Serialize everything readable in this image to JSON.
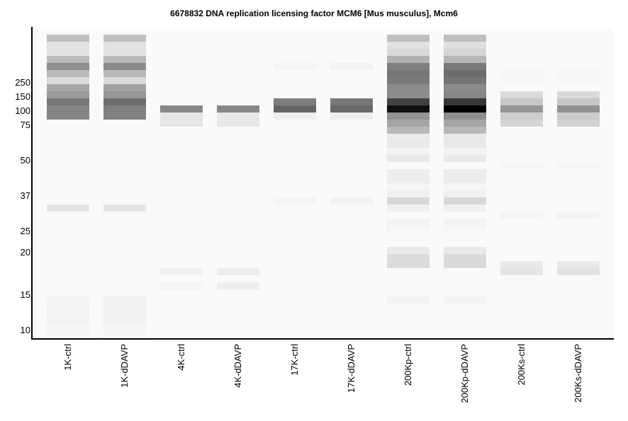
{
  "chart_data": {
    "type": "heatmap",
    "subtype": "virtual-gel",
    "title": "6678832 DNA replication licensing factor MCM6 [Mus musculus], Mcm6",
    "ylabel": "",
    "xlabel": "",
    "y_ticks": [
      "250",
      "150",
      "100",
      "75",
      "50",
      "37",
      "25",
      "20",
      "15",
      "10"
    ],
    "y_tick_bins": [
      6.7,
      8.7,
      10.7,
      12.7,
      17.7,
      22.7,
      27.7,
      30.7,
      36.7,
      41.7
    ],
    "bins": 43,
    "background_grey": 250,
    "lanes": [
      {
        "name": "1K-ctrl",
        "bands": [
          [
            0,
            191
          ],
          [
            1,
            227
          ],
          [
            2,
            227
          ],
          [
            3,
            188
          ],
          [
            4,
            142
          ],
          [
            5,
            187
          ],
          [
            6,
            220
          ],
          [
            7,
            166
          ],
          [
            8,
            154
          ],
          [
            9,
            119
          ],
          [
            10,
            133
          ],
          [
            11,
            133
          ],
          [
            24,
            230
          ],
          [
            37,
            243
          ],
          [
            38,
            242
          ],
          [
            39,
            242
          ],
          [
            40,
            242
          ],
          [
            41,
            245
          ],
          [
            42,
            246
          ]
        ]
      },
      {
        "name": "1K-dDAVP",
        "bands": [
          [
            0,
            191
          ],
          [
            1,
            226
          ],
          [
            2,
            226
          ],
          [
            3,
            186
          ],
          [
            4,
            138
          ],
          [
            5,
            184
          ],
          [
            6,
            218
          ],
          [
            7,
            162
          ],
          [
            8,
            150
          ],
          [
            9,
            110
          ],
          [
            10,
            128
          ],
          [
            11,
            128
          ],
          [
            24,
            230
          ],
          [
            37,
            241
          ],
          [
            38,
            241
          ],
          [
            39,
            241
          ],
          [
            40,
            241
          ],
          [
            41,
            245
          ],
          [
            42,
            245
          ]
        ]
      },
      {
        "name": "4K-ctrl",
        "bands": [
          [
            10,
            135
          ],
          [
            11,
            228
          ],
          [
            12,
            230
          ],
          [
            33,
            240
          ],
          [
            35,
            245
          ]
        ]
      },
      {
        "name": "4K-dDAVP",
        "bands": [
          [
            10,
            135
          ],
          [
            11,
            232
          ],
          [
            12,
            232
          ],
          [
            33,
            236
          ],
          [
            35,
            238
          ]
        ]
      },
      {
        "name": "17K-ctrl",
        "bands": [
          [
            4,
            245
          ],
          [
            9,
            125
          ],
          [
            10,
            100
          ],
          [
            11,
            238
          ],
          [
            23,
            245
          ]
        ]
      },
      {
        "name": "17K-dDAVP",
        "bands": [
          [
            4,
            243
          ],
          [
            9,
            120
          ],
          [
            10,
            105
          ],
          [
            11,
            238
          ],
          [
            23,
            242
          ]
        ]
      },
      {
        "name": "200Kp-ctrl",
        "bands": [
          [
            0,
            191
          ],
          [
            1,
            225
          ],
          [
            2,
            217
          ],
          [
            3,
            178
          ],
          [
            4,
            127
          ],
          [
            5,
            118
          ],
          [
            6,
            122
          ],
          [
            7,
            140
          ],
          [
            8,
            140
          ],
          [
            9,
            65
          ],
          [
            10,
            15
          ],
          [
            11,
            148
          ],
          [
            12,
            165
          ],
          [
            13,
            185
          ],
          [
            14,
            235
          ],
          [
            15,
            233
          ],
          [
            16,
            243
          ],
          [
            17,
            233
          ],
          [
            19,
            237
          ],
          [
            20,
            237
          ],
          [
            21,
            245
          ],
          [
            22,
            240
          ],
          [
            23,
            215
          ],
          [
            24,
            240
          ],
          [
            26,
            243
          ],
          [
            27,
            247
          ],
          [
            30,
            233
          ],
          [
            31,
            220
          ],
          [
            32,
            220
          ],
          [
            37,
            243
          ]
        ]
      },
      {
        "name": "200Kp-dDAVP",
        "bands": [
          [
            0,
            191
          ],
          [
            1,
            222
          ],
          [
            2,
            212
          ],
          [
            3,
            182
          ],
          [
            4,
            123
          ],
          [
            5,
            108
          ],
          [
            6,
            118
          ],
          [
            7,
            140
          ],
          [
            8,
            135
          ],
          [
            9,
            55
          ],
          [
            10,
            0
          ],
          [
            11,
            142
          ],
          [
            12,
            165
          ],
          [
            13,
            185
          ],
          [
            14,
            233
          ],
          [
            15,
            233
          ],
          [
            16,
            243
          ],
          [
            17,
            233
          ],
          [
            19,
            236
          ],
          [
            20,
            236
          ],
          [
            21,
            245
          ],
          [
            22,
            240
          ],
          [
            23,
            215
          ],
          [
            24,
            240
          ],
          [
            26,
            243
          ],
          [
            27,
            247
          ],
          [
            30,
            233
          ],
          [
            31,
            218
          ],
          [
            32,
            218
          ],
          [
            37,
            243
          ]
        ]
      },
      {
        "name": "200Ks-ctrl",
        "bands": [
          [
            5,
            247
          ],
          [
            6,
            248
          ],
          [
            8,
            218
          ],
          [
            9,
            200
          ],
          [
            10,
            150
          ],
          [
            11,
            205
          ],
          [
            12,
            212
          ],
          [
            18,
            247
          ],
          [
            25,
            245
          ],
          [
            32,
            233
          ],
          [
            33,
            228
          ]
        ]
      },
      {
        "name": "200Ks-dDAVP",
        "bands": [
          [
            5,
            246
          ],
          [
            6,
            247
          ],
          [
            8,
            217
          ],
          [
            9,
            198
          ],
          [
            10,
            145
          ],
          [
            11,
            203
          ],
          [
            12,
            210
          ],
          [
            18,
            247
          ],
          [
            25,
            244
          ],
          [
            32,
            233
          ],
          [
            33,
            227
          ]
        ]
      }
    ]
  }
}
